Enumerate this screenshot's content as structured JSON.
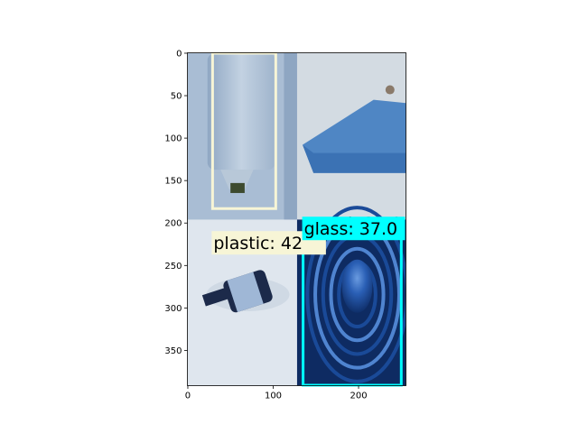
{
  "chart_data": {
    "type": "image",
    "title": "",
    "xlabel": "",
    "ylabel": "",
    "xlim": [
      -0.5,
      255.5
    ],
    "ylim": [
      391.5,
      -0.5
    ],
    "x_ticks": [
      0,
      100,
      200
    ],
    "y_ticks": [
      0,
      50,
      100,
      150,
      200,
      250,
      300,
      350
    ],
    "tiles": [
      {
        "name": "plastic-jug",
        "x": [
          0,
          128
        ],
        "y": [
          0,
          196
        ],
        "fill": "#a9bdd4"
      },
      {
        "name": "cardboard-shelf",
        "x": [
          128,
          256
        ],
        "y": [
          0,
          196
        ],
        "fill": "#c9d3dc"
      },
      {
        "name": "glass-bottle",
        "x": [
          0,
          128
        ],
        "y": [
          196,
          392
        ],
        "fill": "#dfe6ee"
      },
      {
        "name": "blue-container",
        "x": [
          128,
          256
        ],
        "y": [
          196,
          392
        ],
        "fill": "#1f4f9a"
      }
    ],
    "detections": [
      {
        "label": "plastic: 42",
        "x": [
          29,
          103
        ],
        "y": [
          0,
          183
        ],
        "color": "#f7f5d6"
      },
      {
        "label": "glass: 37.0",
        "x": [
          135,
          250
        ],
        "y": [
          217,
          391
        ],
        "color": "#00ffff"
      }
    ],
    "occluded_labels": [
      "al: 37.0"
    ]
  }
}
